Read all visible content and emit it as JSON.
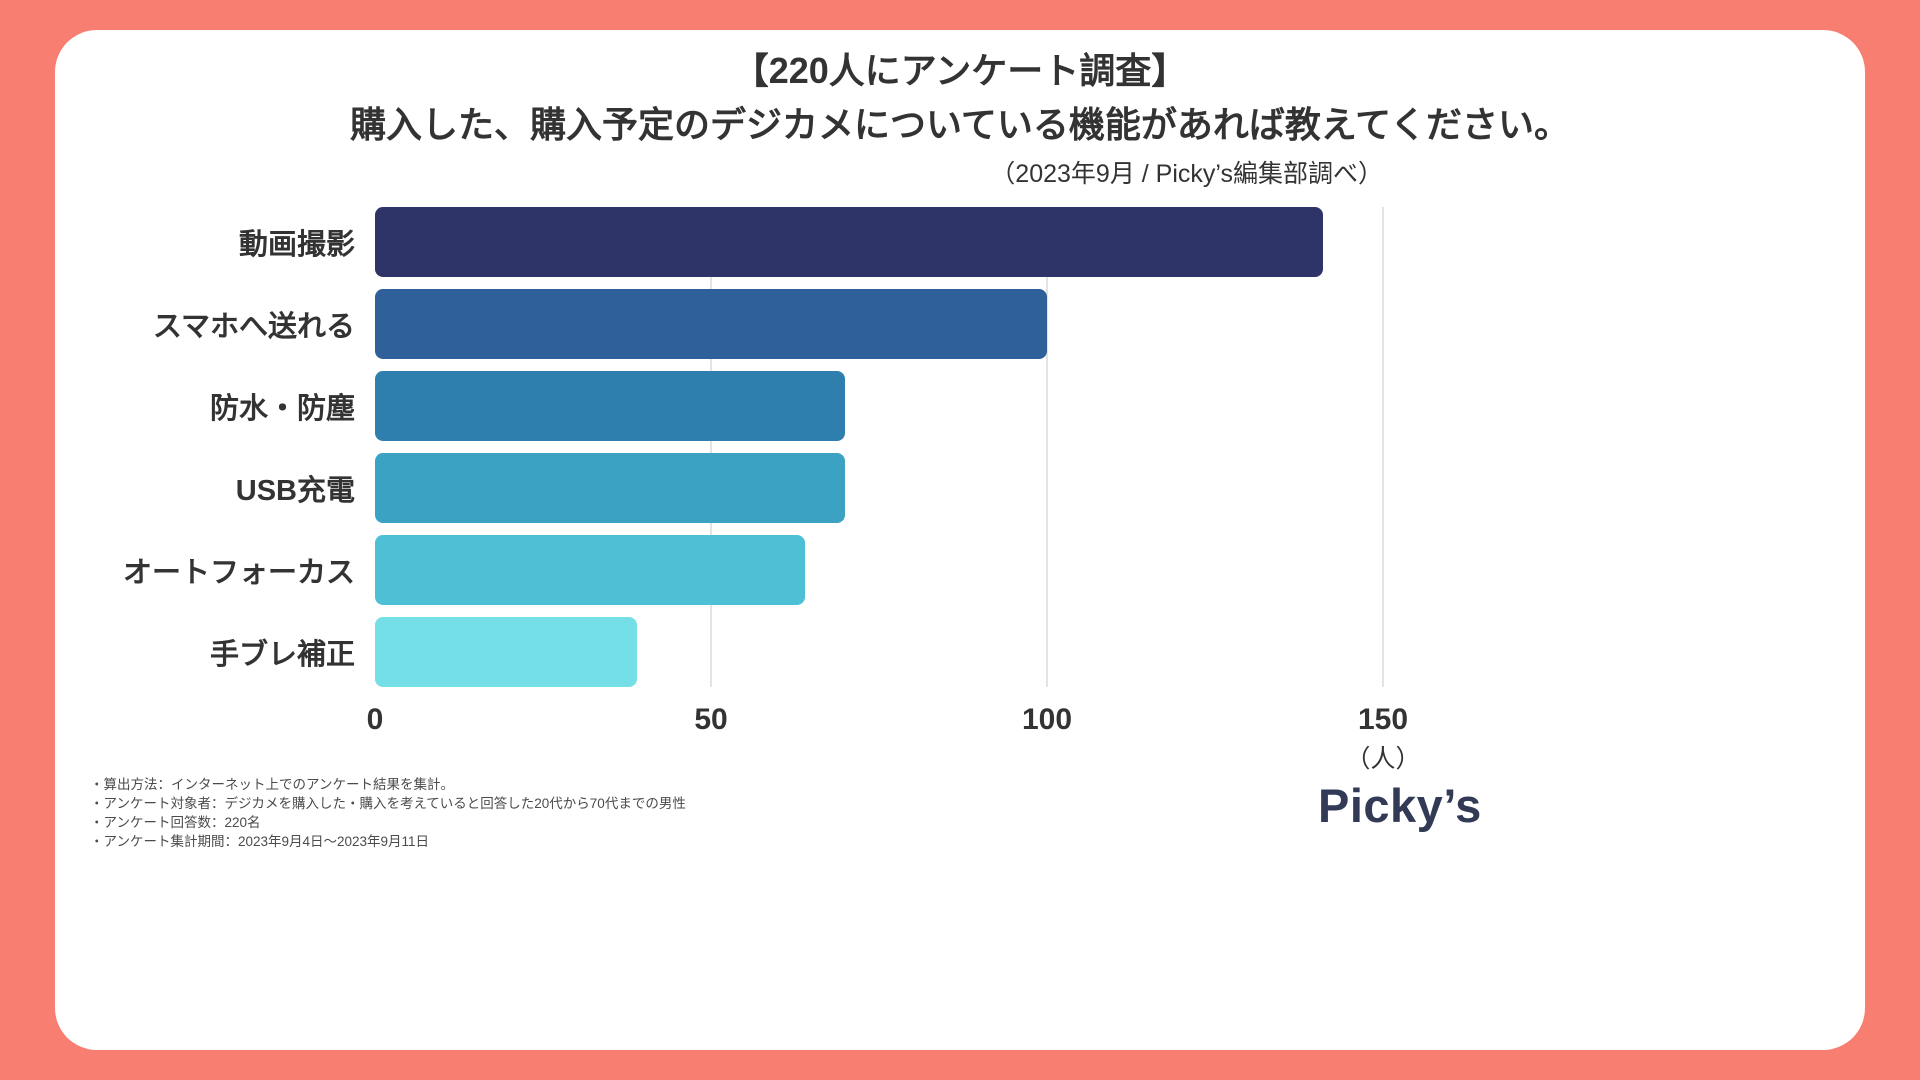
{
  "frame": {
    "background_color": "#F87E72",
    "card_background_color": "#FFFFFF"
  },
  "title": {
    "line1": "【220人にアンケート調査】",
    "line2": "購入した、購入予定のデジカメについている機能があれば教えてください。"
  },
  "subtitle": "（2023年9月 / Picky’s編集部調べ）",
  "chart_data": {
    "type": "bar",
    "orientation": "horizontal",
    "title": "【220人にアンケート調査】購入した、購入予定のデジカメについている機能があれば教えてください。",
    "categories": [
      "動画撮影",
      "スマホへ送れる",
      "防水・防塵",
      "USB充電",
      "オートフォーカス",
      "手ブレ補正"
    ],
    "values": [
      141,
      100,
      70,
      70,
      64,
      39
    ],
    "bar_colors": [
      "#2E3467",
      "#30609A",
      "#2F7FAE",
      "#3BA2C4",
      "#4DC0D6",
      "#74DFE7"
    ],
    "xlim": [
      0,
      150
    ],
    "xticks": [
      0,
      50,
      100,
      150
    ],
    "unit_label": "（人）",
    "xlabel": "",
    "ylabel": "",
    "grid": "vertical-lines-at-ticks",
    "legend": "none",
    "gridline_color": "#E3E3E3",
    "label_color": "#333333"
  },
  "footnotes": [
    "・算出方法：インターネット上でのアンケート結果を集計。",
    "・アンケート対象者：デジカメを購入した・購入を考えていると回答した20代から70代までの男性",
    "・アンケート回答数：220名",
    "・アンケート集計期間：2023年9月4日〜2023年9月11日"
  ],
  "logo": "Picky’s"
}
